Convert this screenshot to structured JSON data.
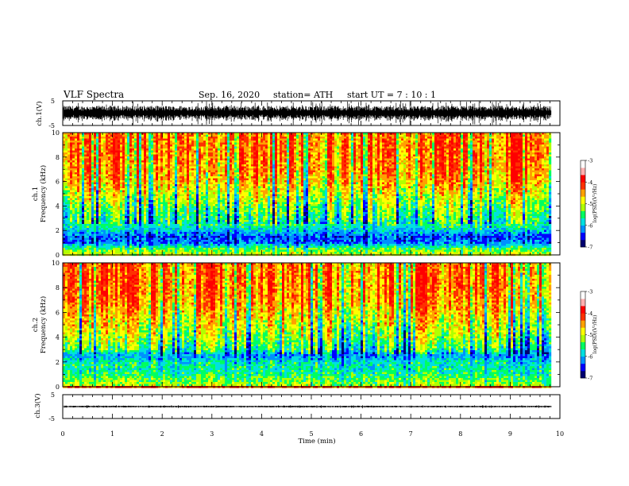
{
  "header": {
    "title": "VLF Spectra",
    "date": "Sep. 16, 2020",
    "station": "station= ATH",
    "start": "start  UT =   7 : 10 : 1"
  },
  "axes": {
    "time_label": "Time  (min)",
    "time_ticks": [
      "0",
      "1",
      "2",
      "3",
      "4",
      "5",
      "6",
      "7",
      "8",
      "9",
      "10"
    ],
    "freq_ticks": [
      "0",
      "2",
      "4",
      "6",
      "8",
      "10"
    ],
    "ch1_wave_label": "ch.1(V)",
    "ch3_wave_label": "ch.3(V)",
    "ch1_spec_label": "ch.1",
    "ch2_spec_label": "ch.2",
    "freq_label": "Frequency  (kHz)",
    "wave_ticks": [
      "5",
      "-5"
    ]
  },
  "colorbar": {
    "label": "log(PSD)(V²/Hz)",
    "ticks": [
      "-3",
      "-4",
      "-5",
      "-6",
      "-7"
    ],
    "colors": [
      "#000070",
      "#0000ff",
      "#0090ff",
      "#00e0e0",
      "#00ff60",
      "#b0ff00",
      "#ffff00",
      "#ffa000",
      "#ff3000",
      "#ff0000",
      "#ffb0b0",
      "#ffffff"
    ]
  },
  "chart_data": [
    {
      "type": "line",
      "title": "VLF Spectra",
      "panel": "ch.1 waveform",
      "ylabel": "ch.1(V)",
      "xlim": [
        0,
        9.83
      ],
      "ylim": [
        -5,
        5
      ],
      "baseline": 0,
      "typical_amplitude": 2.5
    },
    {
      "type": "heatmap",
      "panel": "ch.1 spectrogram",
      "xlabel": "Time  (min)",
      "ylabel": "Frequency  (kHz)",
      "xlim": [
        0,
        9.83
      ],
      "ylim": [
        0,
        10
      ],
      "color_scale": "log(PSD)(V²/Hz)",
      "zlim": [
        -7,
        -3
      ],
      "level_profile": {
        "frequency_kHz": [
          0,
          0.5,
          1,
          1.5,
          2,
          2.5,
          3,
          4,
          5,
          6,
          7,
          8,
          9,
          10
        ],
        "log_psd": [
          -4.5,
          -5.0,
          -6.0,
          -6.1,
          -5.6,
          -5.2,
          -5.0,
          -4.7,
          -4.3,
          -3.9,
          -3.7,
          -3.6,
          -3.6,
          -3.6
        ]
      }
    },
    {
      "type": "heatmap",
      "panel": "ch.2 spectrogram",
      "xlabel": "Time  (min)",
      "ylabel": "Frequency  (kHz)",
      "xlim": [
        0,
        9.83
      ],
      "ylim": [
        0,
        10
      ],
      "color_scale": "log(PSD)(V²/Hz)",
      "zlim": [
        -7,
        -3
      ],
      "level_profile": {
        "frequency_kHz": [
          0,
          0.5,
          1,
          1.5,
          2,
          2.5,
          3,
          4,
          5,
          6,
          7,
          8,
          9,
          10
        ],
        "log_psd": [
          -4.6,
          -4.9,
          -5.2,
          -5.3,
          -5.4,
          -5.9,
          -5.0,
          -4.6,
          -4.3,
          -4.0,
          -3.7,
          -3.6,
          -3.6,
          -3.6
        ]
      }
    },
    {
      "type": "line",
      "panel": "ch.3 waveform",
      "ylabel": "ch.3(V)",
      "xlabel": "Time  (min)",
      "xlim": [
        0,
        9.83
      ],
      "ylim": [
        -5,
        5
      ],
      "baseline": 0,
      "typical_amplitude": 0.3
    }
  ]
}
